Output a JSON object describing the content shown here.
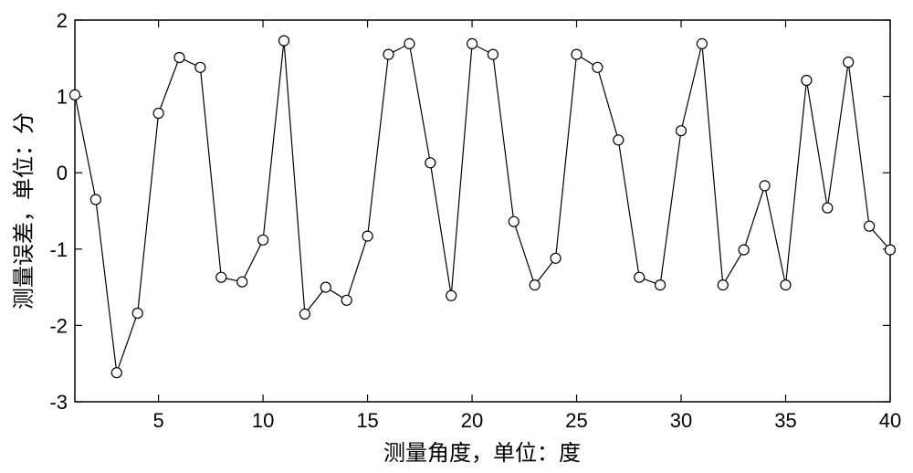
{
  "chart_data": {
    "type": "line",
    "xlabel": "测量角度，单位：度",
    "ylabel": "测量误差，单位：分",
    "xlim": [
      1,
      40
    ],
    "ylim": [
      -3,
      2
    ],
    "x_ticks": [
      5,
      10,
      15,
      20,
      25,
      30,
      35,
      40
    ],
    "y_ticks": [
      -3,
      -2,
      -1,
      0,
      1,
      2
    ],
    "grid": false,
    "marker": "circle",
    "line_color": "#000000",
    "series": [
      {
        "x": [
          1,
          2,
          3,
          4,
          5,
          6,
          7,
          8,
          9,
          10,
          11,
          12,
          13,
          14,
          15,
          16,
          17,
          18,
          19,
          20,
          21,
          22,
          23,
          24,
          25,
          26,
          27,
          28,
          29,
          30,
          31,
          32,
          33,
          34,
          35,
          36,
          37,
          38,
          39,
          40
        ],
        "values": [
          1.02,
          -0.35,
          -2.62,
          -1.84,
          0.78,
          1.51,
          1.38,
          -1.37,
          -1.43,
          -0.88,
          1.73,
          -1.85,
          -1.5,
          -1.67,
          -0.83,
          1.55,
          1.69,
          0.13,
          -1.61,
          1.69,
          1.55,
          -0.64,
          -1.47,
          -1.12,
          1.55,
          1.38,
          0.43,
          -1.37,
          -1.47,
          0.55,
          1.69,
          -1.47,
          -1.01,
          -0.17,
          -1.47,
          1.21,
          -0.46,
          1.45,
          -0.7,
          -1.01
        ]
      }
    ]
  }
}
